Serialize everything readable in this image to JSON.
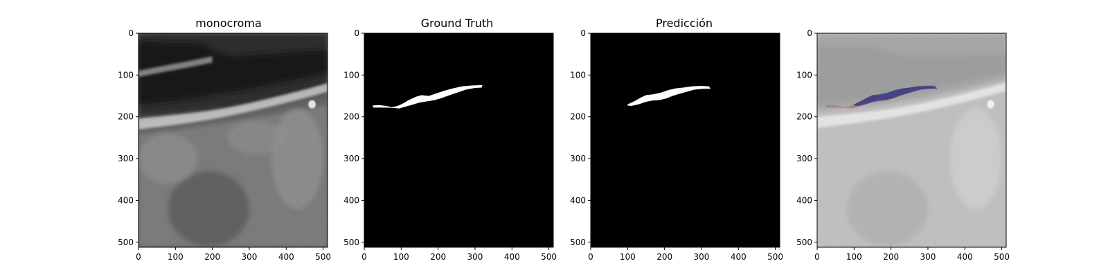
{
  "panels": [
    {
      "id": "monochrome",
      "title": "monocroma",
      "x_ticks": [
        "0",
        "100",
        "200",
        "300",
        "400",
        "500"
      ],
      "y_ticks": [
        "0",
        "100",
        "200",
        "300",
        "400",
        "500"
      ],
      "content": "grayscale ultrasound image"
    },
    {
      "id": "ground-truth",
      "title": "Ground Truth",
      "x_ticks": [
        "0",
        "100",
        "200",
        "300",
        "400",
        "500"
      ],
      "y_ticks": [
        "0",
        "100",
        "200",
        "300",
        "400",
        "500"
      ],
      "content": "binary mask",
      "mask_polygon": [
        [
          22,
          173
        ],
        [
          40,
          172
        ],
        [
          60,
          174
        ],
        [
          75,
          177
        ],
        [
          90,
          174
        ],
        [
          105,
          168
        ],
        [
          120,
          160
        ],
        [
          140,
          152
        ],
        [
          155,
          148
        ],
        [
          175,
          150
        ],
        [
          195,
          144
        ],
        [
          215,
          138
        ],
        [
          240,
          132
        ],
        [
          265,
          127
        ],
        [
          290,
          125
        ],
        [
          320,
          124
        ],
        [
          318,
          130
        ],
        [
          300,
          131
        ],
        [
          275,
          135
        ],
        [
          255,
          141
        ],
        [
          235,
          147
        ],
        [
          210,
          155
        ],
        [
          190,
          160
        ],
        [
          170,
          163
        ],
        [
          150,
          166
        ],
        [
          130,
          171
        ],
        [
          110,
          176
        ],
        [
          95,
          180
        ],
        [
          80,
          179
        ],
        [
          62,
          178
        ],
        [
          40,
          178
        ],
        [
          25,
          178
        ]
      ]
    },
    {
      "id": "prediction",
      "title": "Predicción",
      "x_ticks": [
        "0",
        "100",
        "200",
        "300",
        "400",
        "500"
      ],
      "y_ticks": [
        "0",
        "100",
        "200",
        "300",
        "400",
        "500"
      ],
      "content": "binary mask",
      "mask_polygon": [
        [
          100,
          170
        ],
        [
          120,
          162
        ],
        [
          135,
          154
        ],
        [
          150,
          148
        ],
        [
          170,
          146
        ],
        [
          190,
          142
        ],
        [
          210,
          136
        ],
        [
          230,
          132
        ],
        [
          250,
          130
        ],
        [
          275,
          127
        ],
        [
          300,
          126
        ],
        [
          320,
          127
        ],
        [
          325,
          133
        ],
        [
          305,
          133
        ],
        [
          280,
          135
        ],
        [
          260,
          140
        ],
        [
          240,
          145
        ],
        [
          222,
          150
        ],
        [
          205,
          156
        ],
        [
          185,
          160
        ],
        [
          168,
          161
        ],
        [
          150,
          164
        ],
        [
          130,
          170
        ],
        [
          110,
          174
        ],
        [
          100,
          173
        ]
      ]
    },
    {
      "id": "overlay",
      "title": "",
      "x_ticks": [
        "0",
        "100",
        "200",
        "300",
        "400",
        "500"
      ],
      "y_ticks": [
        "0",
        "100",
        "200",
        "300",
        "400",
        "500"
      ],
      "content": "ultrasound with ground truth and prediction overlay"
    }
  ],
  "axis_range": {
    "x": [
      0,
      512
    ],
    "y": [
      0,
      512
    ]
  },
  "colors": {
    "mask": "#ffffff",
    "mask_background": "#000000",
    "overlay_truth": "#b0605e",
    "overlay_prediction": "#1e2a86"
  }
}
